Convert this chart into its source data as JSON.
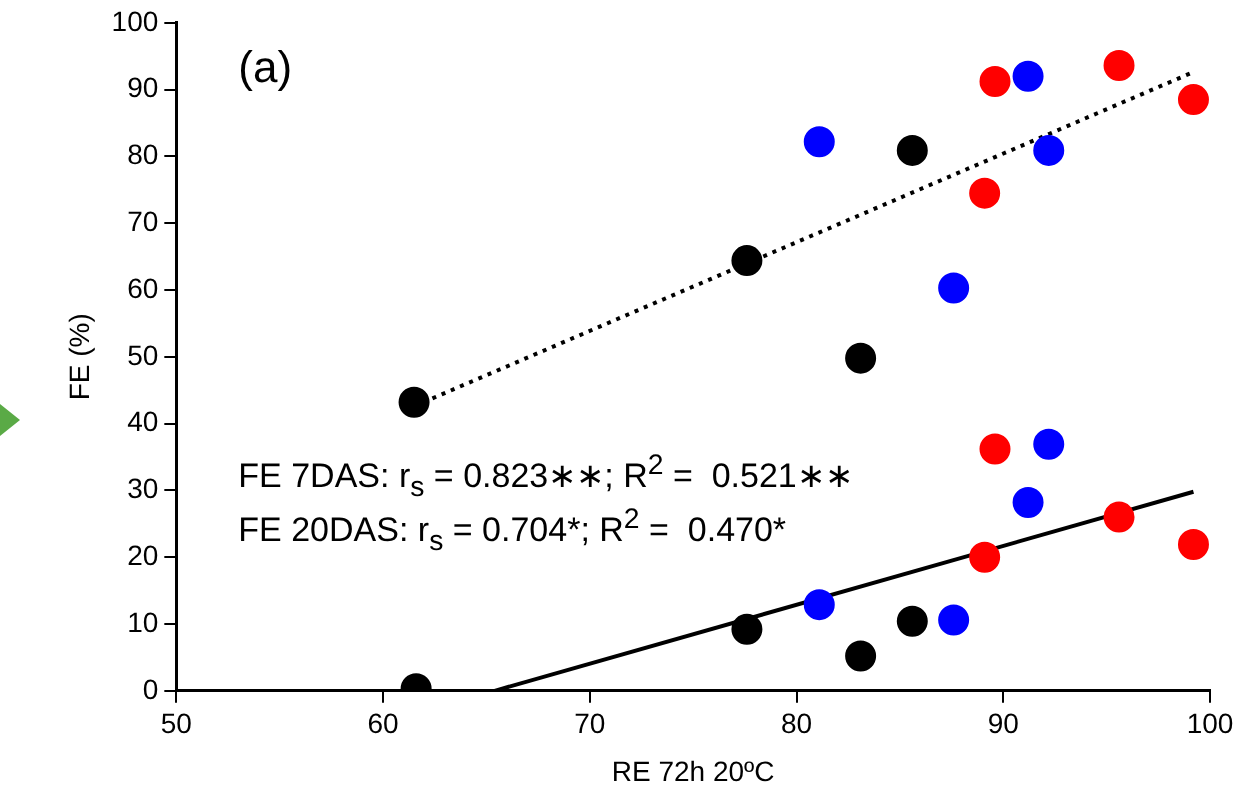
{
  "chart_data": {
    "type": "scatter",
    "xlabel": "RE 72h 20ºC",
    "ylabel": "FE (%)",
    "xlim": [
      50,
      100
    ],
    "xticks": [
      50,
      60,
      70,
      80,
      90,
      100
    ],
    "ylim": [
      0,
      100
    ],
    "yticks": [
      0,
      10,
      20,
      30,
      40,
      50,
      60,
      70,
      80,
      90,
      100
    ],
    "grid": false,
    "legend": false,
    "marker": "circle",
    "annotations": [
      "(a)",
      "FE 7DAS: r$_{s}$ = 0.823∗∗; R$^{2}$ =  0.521∗∗",
      "FE 20DAS: r$_{s}$ = 0.704*; R$^{2}$ =  0.470*"
    ],
    "series": [
      {
        "color": "#000000",
        "x": [
          61.5,
          77.6,
          83.1,
          85.6
        ],
        "values": [
          43.2,
          64.4,
          49.8,
          80.9
        ]
      },
      {
        "color": "#0000ff",
        "x": [
          81.1,
          87.6,
          91.2,
          92.2
        ],
        "values": [
          82.2,
          60.3,
          92.0,
          80.9
        ]
      },
      {
        "color": "#ff0000",
        "x": [
          89.6,
          89.1,
          95.6,
          99.2
        ],
        "values": [
          91.2,
          74.5,
          93.6,
          88.5
        ]
      },
      {
        "color": "#000000",
        "x": [
          61.6,
          77.6,
          83.1,
          85.6
        ],
        "values": [
          0.3,
          9.2,
          5.2,
          10.4
        ]
      },
      {
        "color": "#0000ff",
        "x": [
          81.1,
          87.6,
          91.2,
          92.2
        ],
        "values": [
          12.9,
          10.6,
          28.2,
          36.9
        ]
      },
      {
        "color": "#ff0000",
        "x": [
          89.6,
          89.1,
          95.6,
          99.2
        ],
        "values": [
          36.2,
          20.0,
          26.0,
          21.9
        ]
      },
      {
        "type": "line",
        "color": "#000000",
        "line_style": "dotted",
        "marker": "none",
        "x": [
          61.5,
          99.1
        ],
        "values": [
          42.6,
          92.5
        ]
      },
      {
        "type": "line",
        "color": "#000000",
        "line_style": "solid",
        "marker": "none",
        "x": [
          65.4,
          99.2
        ],
        "values": [
          0,
          29.8
        ]
      }
    ]
  }
}
